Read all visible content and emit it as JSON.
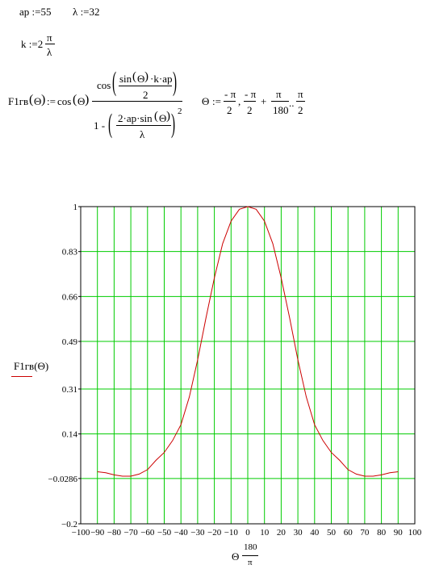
{
  "defs": {
    "ap_lhs": "ap",
    "assign": ":=",
    "ap_val": "55",
    "lambda_lhs": "λ",
    "lambda_val": "32",
    "k_lhs": "k",
    "k_coef": "2",
    "pi": "π",
    "lambda": "λ"
  },
  "formula": {
    "lhs": "F1гв",
    "theta": "Θ",
    "cos": "cos",
    "sin": "sin",
    "k": "k",
    "ap": "ap",
    "two": "2",
    "one_minus": "1 -",
    "two_ap": "2·ap·",
    "exp": "2",
    "dot": "·",
    "range_lhs": "Θ",
    "minus_pi": "- π",
    "plus": "+",
    "one_eighty": "180",
    "dots": ".."
  },
  "chart_data": {
    "type": "line",
    "ylabel": "F1гв(Θ)",
    "xlabel_var": "Θ",
    "xlabel_num": "180",
    "xlabel_den": "π",
    "xlim": [
      -100,
      100
    ],
    "ylim": [
      -0.2,
      1
    ],
    "xticks": [
      -100,
      -90,
      -80,
      -70,
      -60,
      -50,
      -40,
      -30,
      -20,
      -10,
      0,
      10,
      20,
      30,
      40,
      50,
      60,
      70,
      80,
      90,
      100
    ],
    "xtick_labels": [
      "−100",
      "−90",
      "−80",
      "−70",
      "−60",
      "−50",
      "−40",
      "−30",
      "−20",
      "−10",
      "0",
      "10",
      "20",
      "30",
      "40",
      "50",
      "60",
      "70",
      "80",
      "90",
      "100"
    ],
    "yticks": [
      -0.2,
      -0.0286,
      0.14,
      0.31,
      0.49,
      0.66,
      0.83,
      1
    ],
    "ytick_labels": [
      "−0.2",
      "−0.0286",
      "0.14",
      "0.31",
      "0.49",
      "0.66",
      "0.83",
      "1"
    ],
    "grid": true,
    "series": [
      {
        "name": "F1гв(Θ)",
        "color": "#cc0000",
        "x": [
          -90,
          -85,
          -80,
          -75,
          -70,
          -65,
          -60,
          -55,
          -50,
          -45,
          -40,
          -35,
          -30,
          -25,
          -20,
          -15,
          -10,
          -5,
          0,
          5,
          10,
          15,
          20,
          25,
          30,
          35,
          40,
          45,
          50,
          55,
          60,
          65,
          70,
          75,
          80,
          85,
          90
        ],
        "y": [
          -0.003,
          -0.007,
          -0.015,
          -0.02,
          -0.02,
          -0.012,
          0.005,
          0.04,
          0.07,
          0.115,
          0.175,
          0.28,
          0.42,
          0.58,
          0.73,
          0.86,
          0.945,
          0.99,
          1,
          0.99,
          0.945,
          0.86,
          0.73,
          0.58,
          0.42,
          0.28,
          0.175,
          0.115,
          0.07,
          0.04,
          0.005,
          -0.012,
          -0.02,
          -0.02,
          -0.015,
          -0.007,
          -0.003
        ]
      }
    ]
  },
  "colors": {
    "grid": "#00cc00",
    "curve": "#cc0000",
    "axis": "#000000"
  }
}
